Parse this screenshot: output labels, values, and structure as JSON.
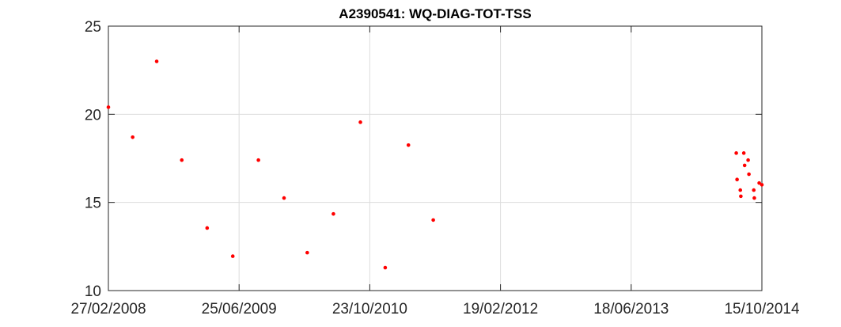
{
  "chart_data": {
    "type": "scatter",
    "title": "A2390541: WQ-DIAG-TOT-TSS",
    "xlabel": "",
    "ylabel": "",
    "xlim": [
      "2008-02-27",
      "2014-10-15"
    ],
    "ylim": [
      10,
      25
    ],
    "x_ticks": [
      "27/02/2008",
      "25/06/2009",
      "23/10/2010",
      "19/02/2012",
      "18/06/2013",
      "15/10/2014"
    ],
    "y_ticks": [
      "10",
      "15",
      "20",
      "25"
    ],
    "grid": true,
    "marker_color": "#ff0000",
    "points": [
      {
        "x": "2008-02-27",
        "y": 20.4
      },
      {
        "x": "2008-05-27",
        "y": 18.7
      },
      {
        "x": "2008-08-24",
        "y": 23.0
      },
      {
        "x": "2008-11-25",
        "y": 17.4
      },
      {
        "x": "2009-02-27",
        "y": 13.55
      },
      {
        "x": "2009-06-02",
        "y": 11.95
      },
      {
        "x": "2009-09-05",
        "y": 17.4
      },
      {
        "x": "2009-12-09",
        "y": 15.25
      },
      {
        "x": "2010-03-05",
        "y": 12.15
      },
      {
        "x": "2010-06-10",
        "y": 14.35
      },
      {
        "x": "2010-09-18",
        "y": 19.55
      },
      {
        "x": "2010-12-19",
        "y": 11.3
      },
      {
        "x": "2011-03-15",
        "y": 18.25
      },
      {
        "x": "2011-06-15",
        "y": 14.0
      },
      {
        "x": "2014-07-12",
        "y": 17.8
      },
      {
        "x": "2014-07-15",
        "y": 16.3
      },
      {
        "x": "2014-07-27",
        "y": 15.7
      },
      {
        "x": "2014-07-29",
        "y": 15.35
      },
      {
        "x": "2014-08-09",
        "y": 17.8
      },
      {
        "x": "2014-08-12",
        "y": 17.1
      },
      {
        "x": "2014-08-25",
        "y": 17.4
      },
      {
        "x": "2014-08-28",
        "y": 16.6
      },
      {
        "x": "2014-09-15",
        "y": 15.7
      },
      {
        "x": "2014-09-17",
        "y": 15.25
      },
      {
        "x": "2014-10-05",
        "y": 16.1
      },
      {
        "x": "2014-10-15",
        "y": 16.0
      }
    ]
  }
}
